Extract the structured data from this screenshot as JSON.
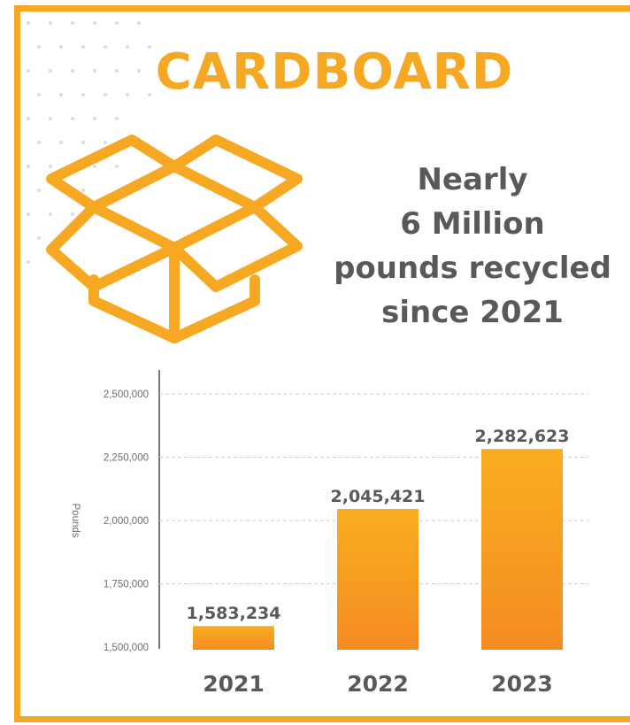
{
  "title": "CARDBOARD",
  "headline": [
    "Nearly",
    "6 Million",
    "pounds recycled",
    "since 2021"
  ],
  "icon": "open-box-icon",
  "colors": {
    "accent": "#f7a823",
    "bar_top": "#f9ad20",
    "bar_bottom": "#f58c22",
    "text_dark": "#58595b",
    "dots": "#dcdcdc"
  },
  "chart_data": {
    "type": "bar",
    "categories": [
      "2021",
      "2022",
      "2023"
    ],
    "values": [
      1583234,
      2045421,
      2282623
    ],
    "value_labels": [
      "1,583,234",
      "2,045,421",
      "2,282,623"
    ],
    "ylabel": "Pounds",
    "ylim": [
      1500000,
      2500000
    ],
    "yticks": [
      1500000,
      1750000,
      2000000,
      2250000,
      2500000
    ],
    "ytick_labels": [
      "1,500,000",
      "1,750,000",
      "2,000,000",
      "2,250,000",
      "2,500,000"
    ],
    "grid": true,
    "legend": "none"
  }
}
